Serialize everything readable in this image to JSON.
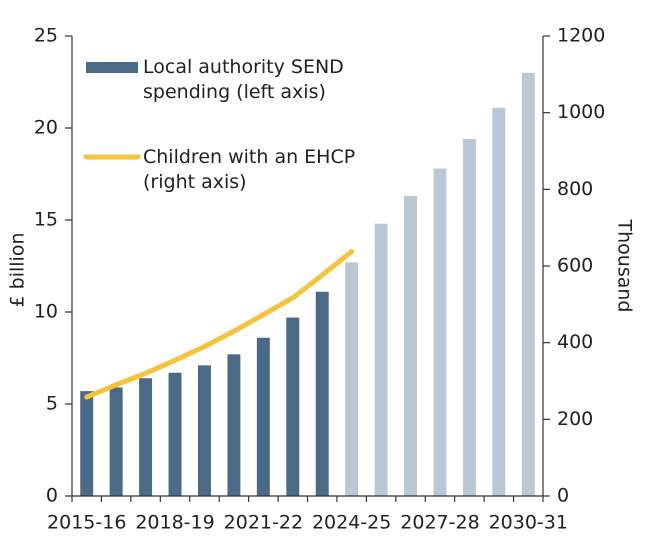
{
  "chart_data": {
    "type": "bar",
    "categories": [
      "2015-16",
      null,
      null,
      "2018-19",
      null,
      null,
      "2021-22",
      null,
      null,
      "2024-25",
      null,
      null,
      "2027-28",
      null,
      null,
      "2030-31"
    ],
    "series": [
      {
        "name": "Local authority SEND spending (left axis)",
        "type": "bar",
        "color": "#4b6a88",
        "colors": [
          "#4b6a88",
          "#4b6a88",
          "#4b6a88",
          "#4b6a88",
          "#4b6a88",
          "#4b6a88",
          "#4b6a88",
          "#4b6a88",
          "#4b6a88",
          "#b9c8d4",
          "#b9c8d4",
          "#b9c8d4",
          "#b9c8d4",
          "#b9c8d4",
          "#b9c8d4",
          "#b9c8d4"
        ],
        "values": [
          5.7,
          5.9,
          6.4,
          6.7,
          7.1,
          7.7,
          8.6,
          9.7,
          11.1,
          12.7,
          14.8,
          16.3,
          17.8,
          19.4,
          21.1,
          23.0
        ]
      },
      {
        "name": "Children with an EHCP (right axis)",
        "type": "line",
        "color": "#f6c33b",
        "axis": "y2",
        "values": [
          258,
          290,
          320,
          354,
          390,
          430,
          473,
          517,
          576,
          638,
          null,
          null,
          null,
          null,
          null,
          null
        ]
      }
    ],
    "ylabel": "£ billion",
    "y2label": "Thousand",
    "ylim": [
      0,
      25
    ],
    "yticks": [
      0,
      5,
      10,
      15,
      20,
      25
    ],
    "y2lim": [
      0,
      1200
    ],
    "y2ticks": [
      0,
      200,
      400,
      600,
      800,
      1000,
      1200
    ],
    "grid": false,
    "legend": "upper left"
  }
}
